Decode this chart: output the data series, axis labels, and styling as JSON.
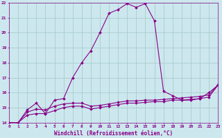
{
  "xlabel": "Windchill (Refroidissement éolien,°C)",
  "xlim": [
    0,
    23
  ],
  "ylim": [
    14,
    22
  ],
  "xticks": [
    0,
    1,
    2,
    3,
    4,
    5,
    6,
    7,
    8,
    9,
    10,
    11,
    12,
    13,
    14,
    15,
    16,
    17,
    18,
    19,
    20,
    21,
    22,
    23
  ],
  "yticks": [
    14,
    15,
    16,
    17,
    18,
    19,
    20,
    21,
    22
  ],
  "background_color": "#cce8ee",
  "grid_color": "#aacccc",
  "line_color": "#880088",
  "curve1_x": [
    0,
    1,
    2,
    3,
    4,
    5,
    6,
    7,
    8,
    9,
    10,
    11,
    12,
    13,
    14,
    15,
    16,
    17,
    18,
    19,
    20,
    21,
    22,
    23
  ],
  "curve1_y": [
    14.0,
    14.0,
    14.85,
    15.3,
    14.6,
    15.5,
    15.6,
    17.0,
    18.0,
    18.8,
    20.0,
    21.3,
    21.55,
    21.95,
    21.7,
    21.95,
    20.8,
    16.1,
    15.8,
    15.5,
    15.5,
    15.6,
    16.0,
    16.5
  ],
  "curve2_x": [
    0,
    1,
    2,
    3,
    4,
    5,
    6,
    7,
    8,
    9,
    10,
    11,
    12,
    13,
    14,
    15,
    16,
    17,
    18,
    19,
    20,
    21,
    22,
    23
  ],
  "curve2_y": [
    14.0,
    14.0,
    14.5,
    14.6,
    14.6,
    14.8,
    15.0,
    15.1,
    15.1,
    14.9,
    15.0,
    15.1,
    15.2,
    15.3,
    15.3,
    15.35,
    15.4,
    15.4,
    15.5,
    15.5,
    15.55,
    15.6,
    15.7,
    16.5
  ],
  "curve3_x": [
    0,
    1,
    2,
    3,
    4,
    5,
    6,
    7,
    8,
    9,
    10,
    11,
    12,
    13,
    14,
    15,
    16,
    17,
    18,
    19,
    20,
    21,
    22,
    23
  ],
  "curve3_y": [
    14.0,
    14.0,
    14.7,
    14.9,
    14.85,
    15.1,
    15.25,
    15.3,
    15.3,
    15.1,
    15.15,
    15.25,
    15.35,
    15.45,
    15.45,
    15.5,
    15.5,
    15.55,
    15.6,
    15.65,
    15.7,
    15.75,
    15.85,
    16.5
  ]
}
